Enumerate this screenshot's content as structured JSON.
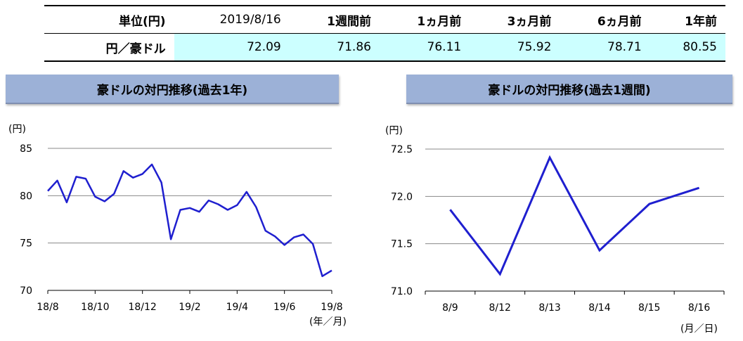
{
  "table": {
    "unit_label": "単位(円)",
    "columns": [
      "2019/8/16",
      "1週間前",
      "1ヵ月前",
      "3ヵ月前",
      "6ヵ月前",
      "1年前"
    ],
    "row_label": "円／豪ドル",
    "values": [
      "72.09",
      "71.86",
      "76.11",
      "75.92",
      "78.71",
      "80.55"
    ]
  },
  "chart_data": [
    {
      "type": "line",
      "title": "豪ドルの対円推移(過去1年)",
      "ylabel": "(円)",
      "xlabel": "(年／月)",
      "ylim": [
        70,
        85
      ],
      "yticks": [
        70,
        75,
        80,
        85
      ],
      "x_tick_labels": [
        "18/8",
        "18/10",
        "18/12",
        "19/2",
        "19/4",
        "19/6",
        "19/8"
      ],
      "grid": true,
      "color": "#1f1fcf",
      "series": [
        {
          "x": [
            0,
            0.4,
            0.8,
            1.2,
            1.6,
            2.0,
            2.4,
            2.8,
            3.2,
            3.6,
            4.0,
            4.4,
            4.8,
            5.2,
            5.6,
            6.0,
            6.4,
            6.8,
            7.2,
            7.6,
            8.0,
            8.4,
            8.8,
            9.2,
            9.6,
            10.0,
            10.4,
            10.8,
            11.2,
            11.6,
            12.0
          ],
          "y": [
            80.5,
            81.6,
            79.3,
            82.0,
            81.8,
            79.9,
            79.4,
            80.2,
            82.6,
            81.9,
            82.3,
            83.3,
            81.4,
            75.4,
            78.5,
            78.7,
            78.3,
            79.5,
            79.1,
            78.5,
            79.0,
            80.4,
            78.8,
            76.3,
            75.7,
            74.8,
            75.6,
            75.9,
            74.9,
            71.5,
            72.1
          ]
        }
      ]
    },
    {
      "type": "line",
      "title": "豪ドルの対円推移(過去1週間)",
      "ylabel": "(円)",
      "xlabel": "(月／日)",
      "ylim": [
        71.0,
        72.5
      ],
      "yticks": [
        "71.0",
        "71.5",
        "72.0",
        "72.5"
      ],
      "categories": [
        "8/9",
        "8/12",
        "8/13",
        "8/14",
        "8/15",
        "8/16"
      ],
      "grid": true,
      "color": "#1f1fcf",
      "series": [
        {
          "values": [
            71.86,
            71.18,
            72.41,
            71.43,
            71.92,
            72.09
          ]
        }
      ]
    }
  ]
}
